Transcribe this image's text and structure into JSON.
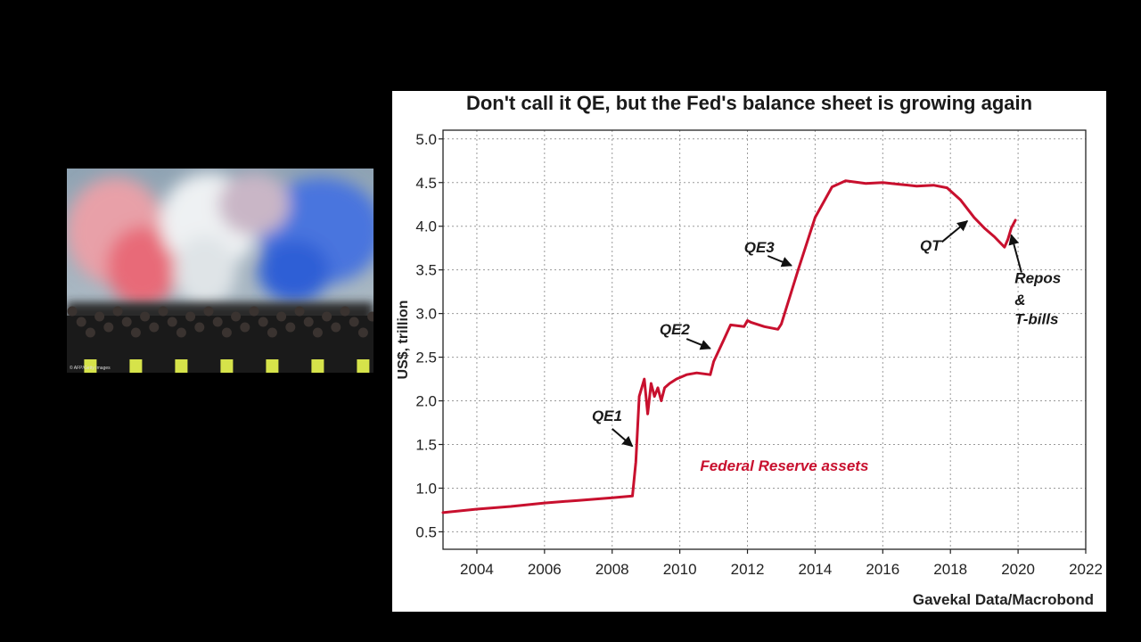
{
  "photo": {
    "credit": "© AFP/Getty Images",
    "smoke_colors": [
      "#e86a78",
      "#e8ecef",
      "#2f5fd6"
    ]
  },
  "chart_data": {
    "type": "line",
    "title": "Don't call it QE, but the Fed's balance sheet is growing again",
    "xlabel": "",
    "ylabel": "US$, trillion",
    "xlim": [
      2003,
      2022
    ],
    "ylim": [
      0.3,
      5.1
    ],
    "x_ticks": [
      2004,
      2006,
      2008,
      2010,
      2012,
      2014,
      2016,
      2018,
      2020,
      2022
    ],
    "y_ticks": [
      0.5,
      1.0,
      1.5,
      2.0,
      2.5,
      3.0,
      3.5,
      4.0,
      4.5,
      5.0
    ],
    "grid": true,
    "series": [
      {
        "name": "Federal Reserve assets",
        "color": "#c8102e",
        "x": [
          2003.0,
          2004.0,
          2005.0,
          2006.0,
          2007.0,
          2008.0,
          2008.6,
          2008.7,
          2008.8,
          2008.95,
          2009.05,
          2009.15,
          2009.25,
          2009.35,
          2009.45,
          2009.55,
          2009.7,
          2009.9,
          2010.2,
          2010.5,
          2010.9,
          2011.0,
          2011.3,
          2011.5,
          2011.9,
          2012.0,
          2012.1,
          2012.5,
          2012.9,
          2013.0,
          2013.5,
          2014.0,
          2014.5,
          2014.9,
          2015.5,
          2016.0,
          2016.5,
          2017.0,
          2017.5,
          2017.9,
          2018.3,
          2018.7,
          2019.0,
          2019.3,
          2019.6,
          2019.7,
          2019.8,
          2019.92
        ],
        "y": [
          0.72,
          0.76,
          0.79,
          0.83,
          0.86,
          0.89,
          0.91,
          1.3,
          2.05,
          2.25,
          1.85,
          2.2,
          2.05,
          2.15,
          2.0,
          2.15,
          2.2,
          2.25,
          2.3,
          2.32,
          2.3,
          2.45,
          2.7,
          2.87,
          2.85,
          2.92,
          2.9,
          2.85,
          2.82,
          2.88,
          3.5,
          4.1,
          4.45,
          4.52,
          4.49,
          4.5,
          4.48,
          4.46,
          4.47,
          4.44,
          4.3,
          4.1,
          3.98,
          3.88,
          3.76,
          3.85,
          3.98,
          4.07
        ]
      }
    ],
    "series_label": "Federal Reserve assets",
    "annotations": [
      {
        "label": "QE1",
        "x": 2008.6,
        "y": 1.48
      },
      {
        "label": "QE2",
        "x": 2010.9,
        "y": 2.6
      },
      {
        "label": "QE3",
        "x": 2013.3,
        "y": 3.55
      },
      {
        "label": "QT",
        "x": 2018.5,
        "y": 4.06
      },
      {
        "label": "Repos",
        "x": 2019.8,
        "y": 3.9
      },
      {
        "label": "&",
        "x": 2019.8,
        "y": 3.9
      },
      {
        "label": "T-bills",
        "x": 2019.8,
        "y": 3.9
      }
    ],
    "source": "Gavekal Data/Macrobond"
  }
}
